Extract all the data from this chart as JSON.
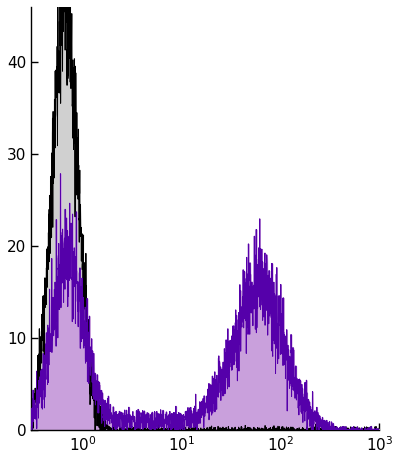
{
  "xlim": [
    0.3,
    1000
  ],
  "ylim": [
    0,
    46
  ],
  "yticks": [
    0,
    10,
    20,
    30,
    40
  ],
  "bg_color": "#ffffff",
  "neg_fill_color": "#d0d0d0",
  "neg_line_color": "#000000",
  "pos_fill_color": "#c9a0dc",
  "pos_line_color": "#5500aa",
  "figsize": [
    4.0,
    4.61
  ],
  "dpi": 100
}
